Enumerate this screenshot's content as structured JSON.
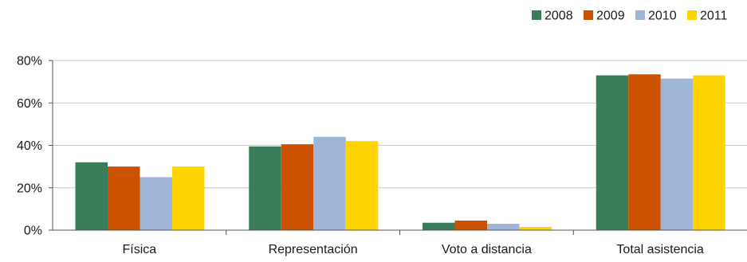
{
  "chart_data": {
    "type": "bar",
    "categories": [
      "Física",
      "Representación",
      "Voto a distancia",
      "Total asistencia"
    ],
    "series": [
      {
        "name": "2008",
        "color": "#3a7d5a",
        "values": [
          0.32,
          0.395,
          0.035,
          0.73
        ]
      },
      {
        "name": "2009",
        "color": "#cc5200",
        "values": [
          0.3,
          0.405,
          0.045,
          0.735
        ]
      },
      {
        "name": "2010",
        "color": "#9fb6d9",
        "values": [
          0.25,
          0.44,
          0.03,
          0.715
        ]
      },
      {
        "name": "2011",
        "color": "#ffd400",
        "values": [
          0.3,
          0.42,
          0.015,
          0.73
        ]
      }
    ],
    "y_ticks": [
      {
        "value": 0,
        "label": "0%"
      },
      {
        "value": 0.2,
        "label": "20%"
      },
      {
        "value": 0.4,
        "label": "40%"
      },
      {
        "value": 0.6,
        "label": "60%"
      },
      {
        "value": 0.8,
        "label": "80%"
      }
    ],
    "ylim": [
      0,
      0.8
    ],
    "grid": true,
    "legend_position": "top-right",
    "title": "",
    "xlabel": "",
    "ylabel": ""
  }
}
